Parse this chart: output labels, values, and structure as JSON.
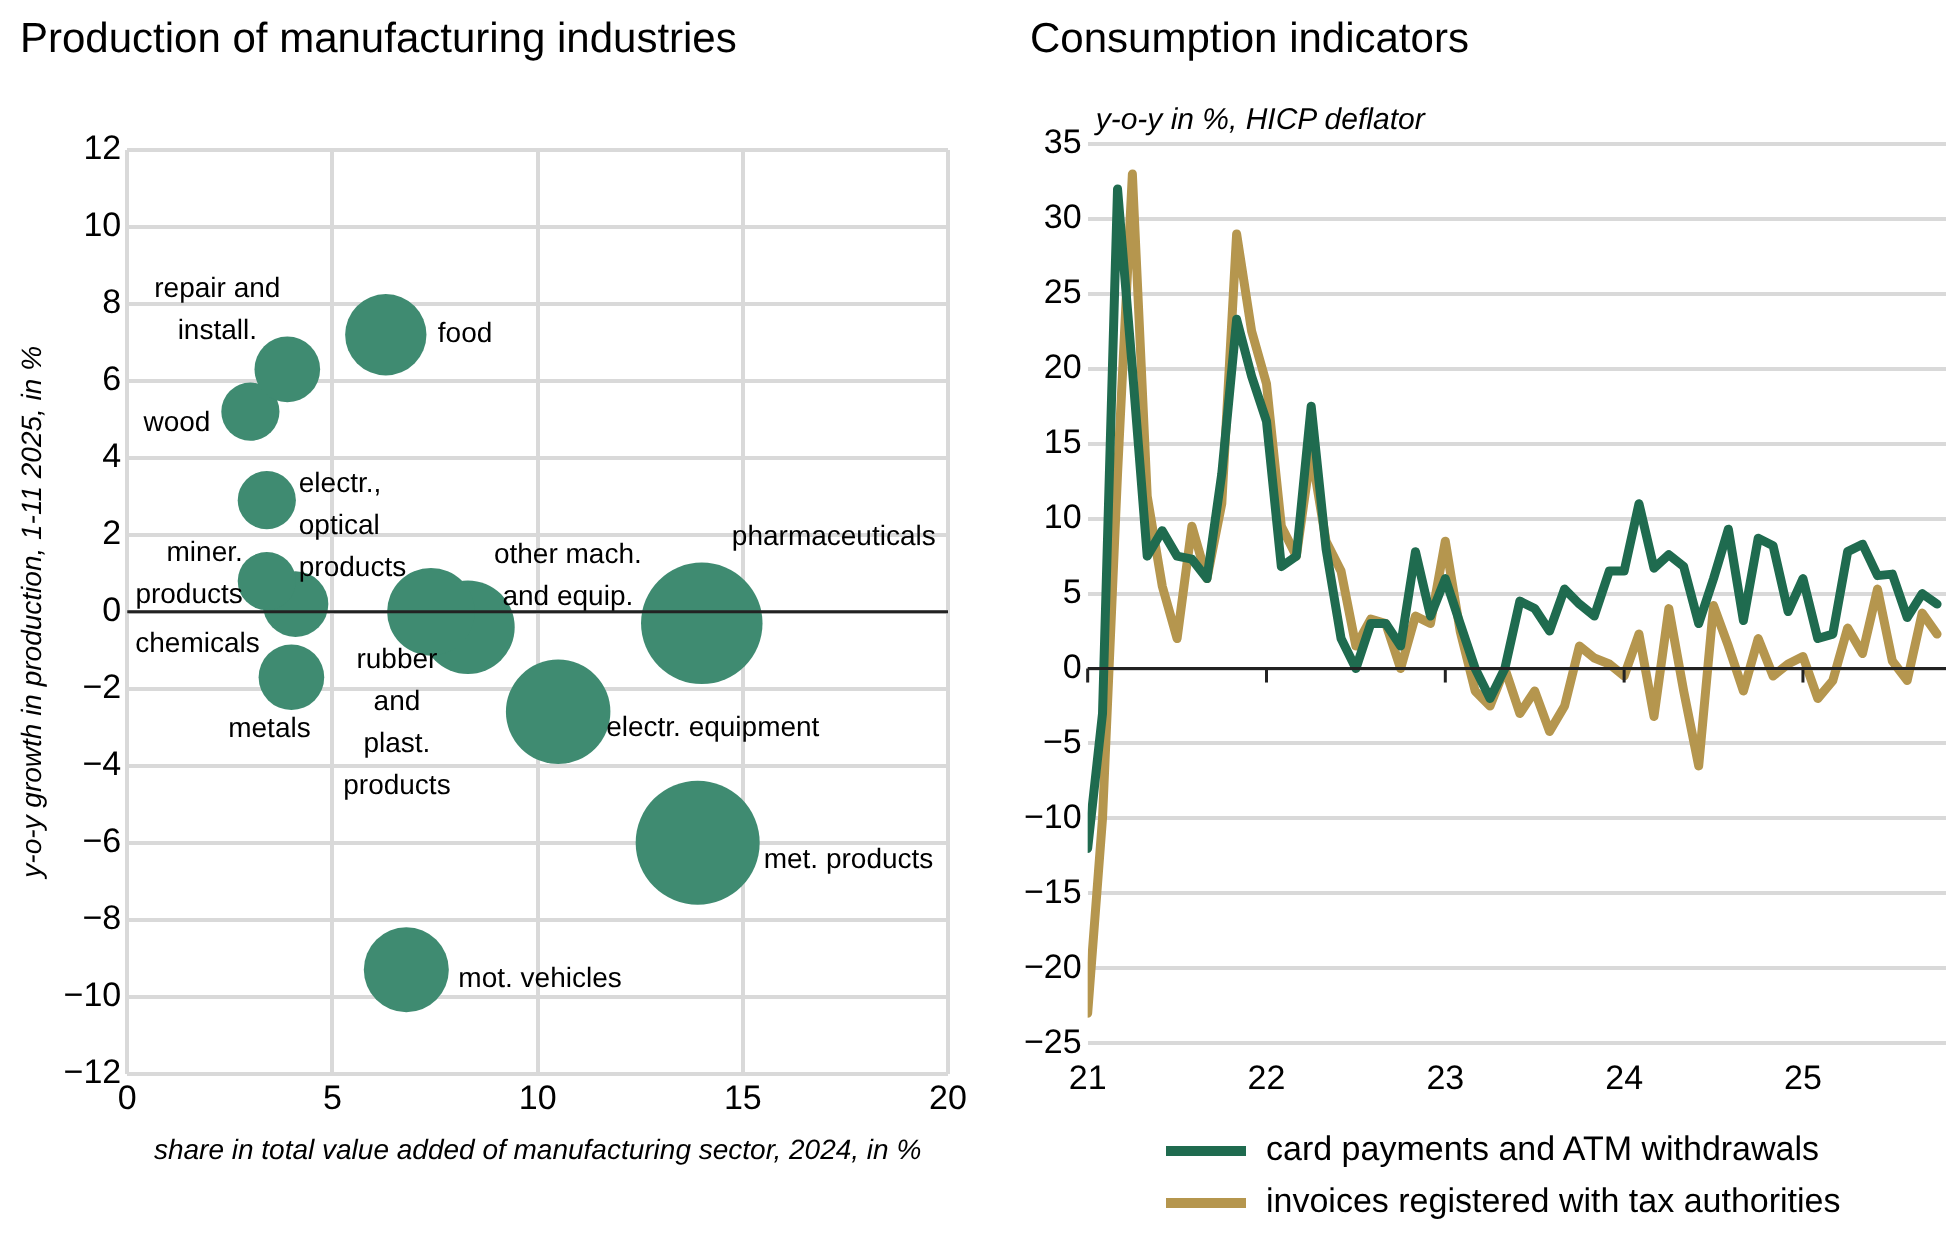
{
  "chart_data": [
    {
      "type": "bubble",
      "title": "Production of manufacturing industries",
      "xlabel": "share in total value added of manufacturing sector, 2024, in %",
      "ylabel": "y-o-y growth in production, 1-11 2025, in %",
      "xlim": [
        0,
        20
      ],
      "xticks": [
        0,
        5,
        10,
        15,
        20
      ],
      "ylim": [
        -12,
        12
      ],
      "yticks": [
        {
          "value": -12,
          "label": "−12"
        },
        {
          "value": -10,
          "label": "−10"
        },
        {
          "value": -8,
          "label": "−8"
        },
        {
          "value": -6,
          "label": "−6"
        },
        {
          "value": -4,
          "label": "−4"
        },
        {
          "value": -2,
          "label": "−2"
        },
        0,
        2,
        4,
        6,
        8,
        10,
        12
      ],
      "grid": true,
      "series": [
        {
          "name": "food",
          "color": "#3f8b71",
          "x": [
            6.3
          ],
          "values": [
            7.2
          ],
          "sizes": [
            0.43
          ]
        },
        {
          "name": "repair and install.",
          "color": "#3f8b71",
          "x": [
            3.9
          ],
          "values": [
            6.3
          ],
          "sizes": [
            0.28
          ]
        },
        {
          "name": "wood",
          "color": "#3f8b71",
          "x": [
            3.0
          ],
          "values": [
            5.2
          ],
          "sizes": [
            0.22
          ]
        },
        {
          "name": "electr., optical products",
          "color": "#3f8b71",
          "x": [
            3.4
          ],
          "values": [
            2.9
          ],
          "sizes": [
            0.22
          ]
        },
        {
          "name": "miner. products",
          "color": "#3f8b71",
          "x": [
            3.4
          ],
          "values": [
            0.8
          ],
          "sizes": [
            0.22
          ]
        },
        {
          "name": "chemicals",
          "color": "#3f8b71",
          "x": [
            4.1
          ],
          "values": [
            0.2
          ],
          "sizes": [
            0.28
          ]
        },
        {
          "name": "metals",
          "color": "#3f8b71",
          "x": [
            4.0
          ],
          "values": [
            -1.7
          ],
          "sizes": [
            0.28
          ]
        },
        {
          "name": "rubber and plast. products",
          "color": "#3f8b71",
          "x": [
            7.4
          ],
          "values": [
            0.0
          ],
          "sizes": [
            0.5
          ]
        },
        {
          "name": "other mach. and equip.",
          "color": "#3f8b71",
          "x": [
            8.3
          ],
          "values": [
            -0.4
          ],
          "sizes": [
            0.57
          ]
        },
        {
          "name": "pharmaceuticals",
          "color": "#3f8b71",
          "x": [
            14.0
          ],
          "values": [
            -0.3
          ],
          "sizes": [
            0.96
          ]
        },
        {
          "name": "electr. equipment",
          "color": "#3f8b71",
          "x": [
            10.5
          ],
          "values": [
            -2.6
          ],
          "sizes": [
            0.71
          ]
        },
        {
          "name": "met. products",
          "color": "#3f8b71",
          "x": [
            13.9
          ],
          "values": [
            -6.0
          ],
          "sizes": [
            1
          ]
        },
        {
          "name": "mot. vehicles",
          "color": "#3f8b71",
          "x": [
            6.8
          ],
          "values": [
            -9.3
          ],
          "sizes": [
            0.47
          ]
        }
      ]
    },
    {
      "type": "line",
      "title": "Consumption indicators",
      "subtitle": "y-o-y in %, HICP deflator",
      "xlim": [
        21,
        25.8
      ],
      "xticks": [
        21,
        22,
        23,
        24,
        25
      ],
      "ylim": [
        -25,
        35
      ],
      "yticks": [
        {
          "value": -25,
          "label": "−25"
        },
        {
          "value": -20,
          "label": "−20"
        },
        {
          "value": -15,
          "label": "−15"
        },
        {
          "value": -10,
          "label": "−10"
        },
        {
          "value": -5,
          "label": "−5"
        },
        0,
        5,
        10,
        15,
        20,
        25,
        30,
        35
      ],
      "grid": "y",
      "legend": "bottom",
      "x": [
        21,
        21.083,
        21.167,
        21.25,
        21.333,
        21.417,
        21.5,
        21.583,
        21.667,
        21.75,
        21.833,
        21.917,
        22,
        22.083,
        22.167,
        22.25,
        22.333,
        22.417,
        22.5,
        22.583,
        22.667,
        22.75,
        22.833,
        22.917,
        23,
        23.083,
        23.167,
        23.25,
        23.333,
        23.417,
        23.5,
        23.583,
        23.667,
        23.75,
        23.833,
        23.917,
        24,
        24.083,
        24.167,
        24.25,
        24.333,
        24.417,
        24.5,
        24.583,
        24.667,
        24.75,
        24.833,
        24.917,
        25,
        25.083,
        25.167,
        25.25,
        25.333,
        25.417,
        25.5,
        25.583,
        25.667,
        25.75
      ],
      "series": [
        {
          "name": "card payments and ATM withdrawals",
          "color": "#1f6b4f",
          "values": [
            -12,
            -3,
            32,
            20,
            7.5,
            9.2,
            7.5,
            7.3,
            6,
            13,
            23.3,
            19.5,
            16.5,
            6.8,
            7.5,
            17.5,
            8,
            2,
            0,
            3,
            3,
            1.5,
            7.8,
            3.5,
            6,
            3,
            0,
            -2,
            0,
            4.5,
            4,
            2.5,
            5.3,
            4.3,
            3.5,
            6.5,
            6.5,
            11,
            6.7,
            7.6,
            6.8,
            3,
            6,
            9.3,
            3.2,
            8.7,
            8.2,
            3.8,
            6,
            2,
            2.3,
            7.8,
            8.3,
            6.2,
            6.3,
            3.4,
            5,
            4.3
          ]
        },
        {
          "name": "invoices registered with tax authorities",
          "color": "#b5964e",
          "values": [
            -23,
            -10,
            13,
            33,
            11.5,
            5.5,
            2,
            9.5,
            6,
            11,
            29,
            22.5,
            19,
            9.5,
            7.5,
            14.5,
            8.5,
            6.5,
            1.5,
            3.3,
            3,
            0,
            3.5,
            3,
            8.5,
            2.5,
            -1.5,
            -2.5,
            0,
            -3,
            -1.5,
            -4.2,
            -2.5,
            1.5,
            0.7,
            0.3,
            -0.5,
            2.3,
            -3.2,
            4,
            -1.5,
            -6.5,
            4.2,
            1.5,
            -1.5,
            2,
            -0.5,
            0.3,
            0.8,
            -2,
            -0.8,
            2.7,
            1,
            5.3,
            0.5,
            -0.8,
            3.7,
            2.3
          ]
        }
      ]
    }
  ]
}
